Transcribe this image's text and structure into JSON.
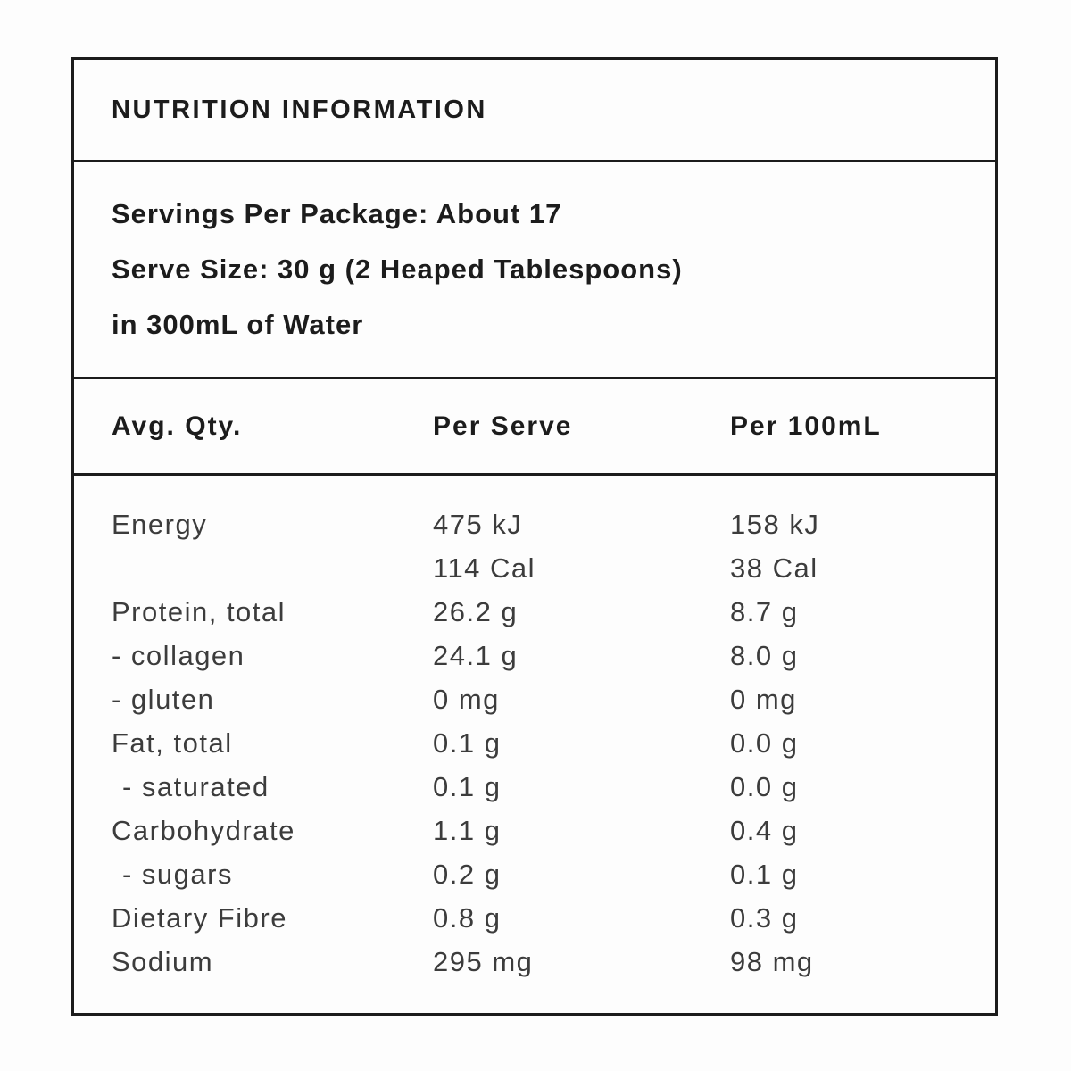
{
  "panel": {
    "title": "NUTRITION INFORMATION",
    "serving_info": {
      "lines": [
        "Servings Per Package: About 17",
        "Serve Size: 30 g (2 Heaped Tablespoons)",
        "in 300mL of Water"
      ]
    },
    "columns": [
      "Avg. Qty.",
      "Per Serve",
      "Per 100mL"
    ],
    "rows": [
      {
        "label": "Energy",
        "per_serve": "475 kJ",
        "per_100ml": "158 kJ",
        "indent": false
      },
      {
        "label": "",
        "per_serve": "114 Cal",
        "per_100ml": "38 Cal",
        "indent": false
      },
      {
        "label": "Protein, total",
        "per_serve": "26.2 g",
        "per_100ml": "8.7 g",
        "indent": false
      },
      {
        "label": "- collagen",
        "per_serve": "24.1 g",
        "per_100ml": "8.0 g",
        "indent": false
      },
      {
        "label": "- gluten",
        "per_serve": "0 mg",
        "per_100ml": "0 mg",
        "indent": false
      },
      {
        "label": "Fat, total",
        "per_serve": "0.1 g",
        "per_100ml": "0.0 g",
        "indent": false
      },
      {
        "label": "- saturated",
        "per_serve": "0.1 g",
        "per_100ml": "0.0 g",
        "indent": true
      },
      {
        "label": "Carbohydrate",
        "per_serve": "1.1 g",
        "per_100ml": "0.4 g",
        "indent": false
      },
      {
        "label": "- sugars",
        "per_serve": "0.2 g",
        "per_100ml": "0.1 g",
        "indent": true
      },
      {
        "label": "Dietary Fibre",
        "per_serve": "0.8 g",
        "per_100ml": "0.3 g",
        "indent": false
      },
      {
        "label": "Sodium",
        "per_serve": "295 mg",
        "per_100ml": "98 mg",
        "indent": false
      }
    ],
    "colors": {
      "border": "#1c1c1c",
      "heading_text": "#1c1c1c",
      "body_text": "#3c3c3c",
      "background": "#fdfdfd"
    }
  }
}
